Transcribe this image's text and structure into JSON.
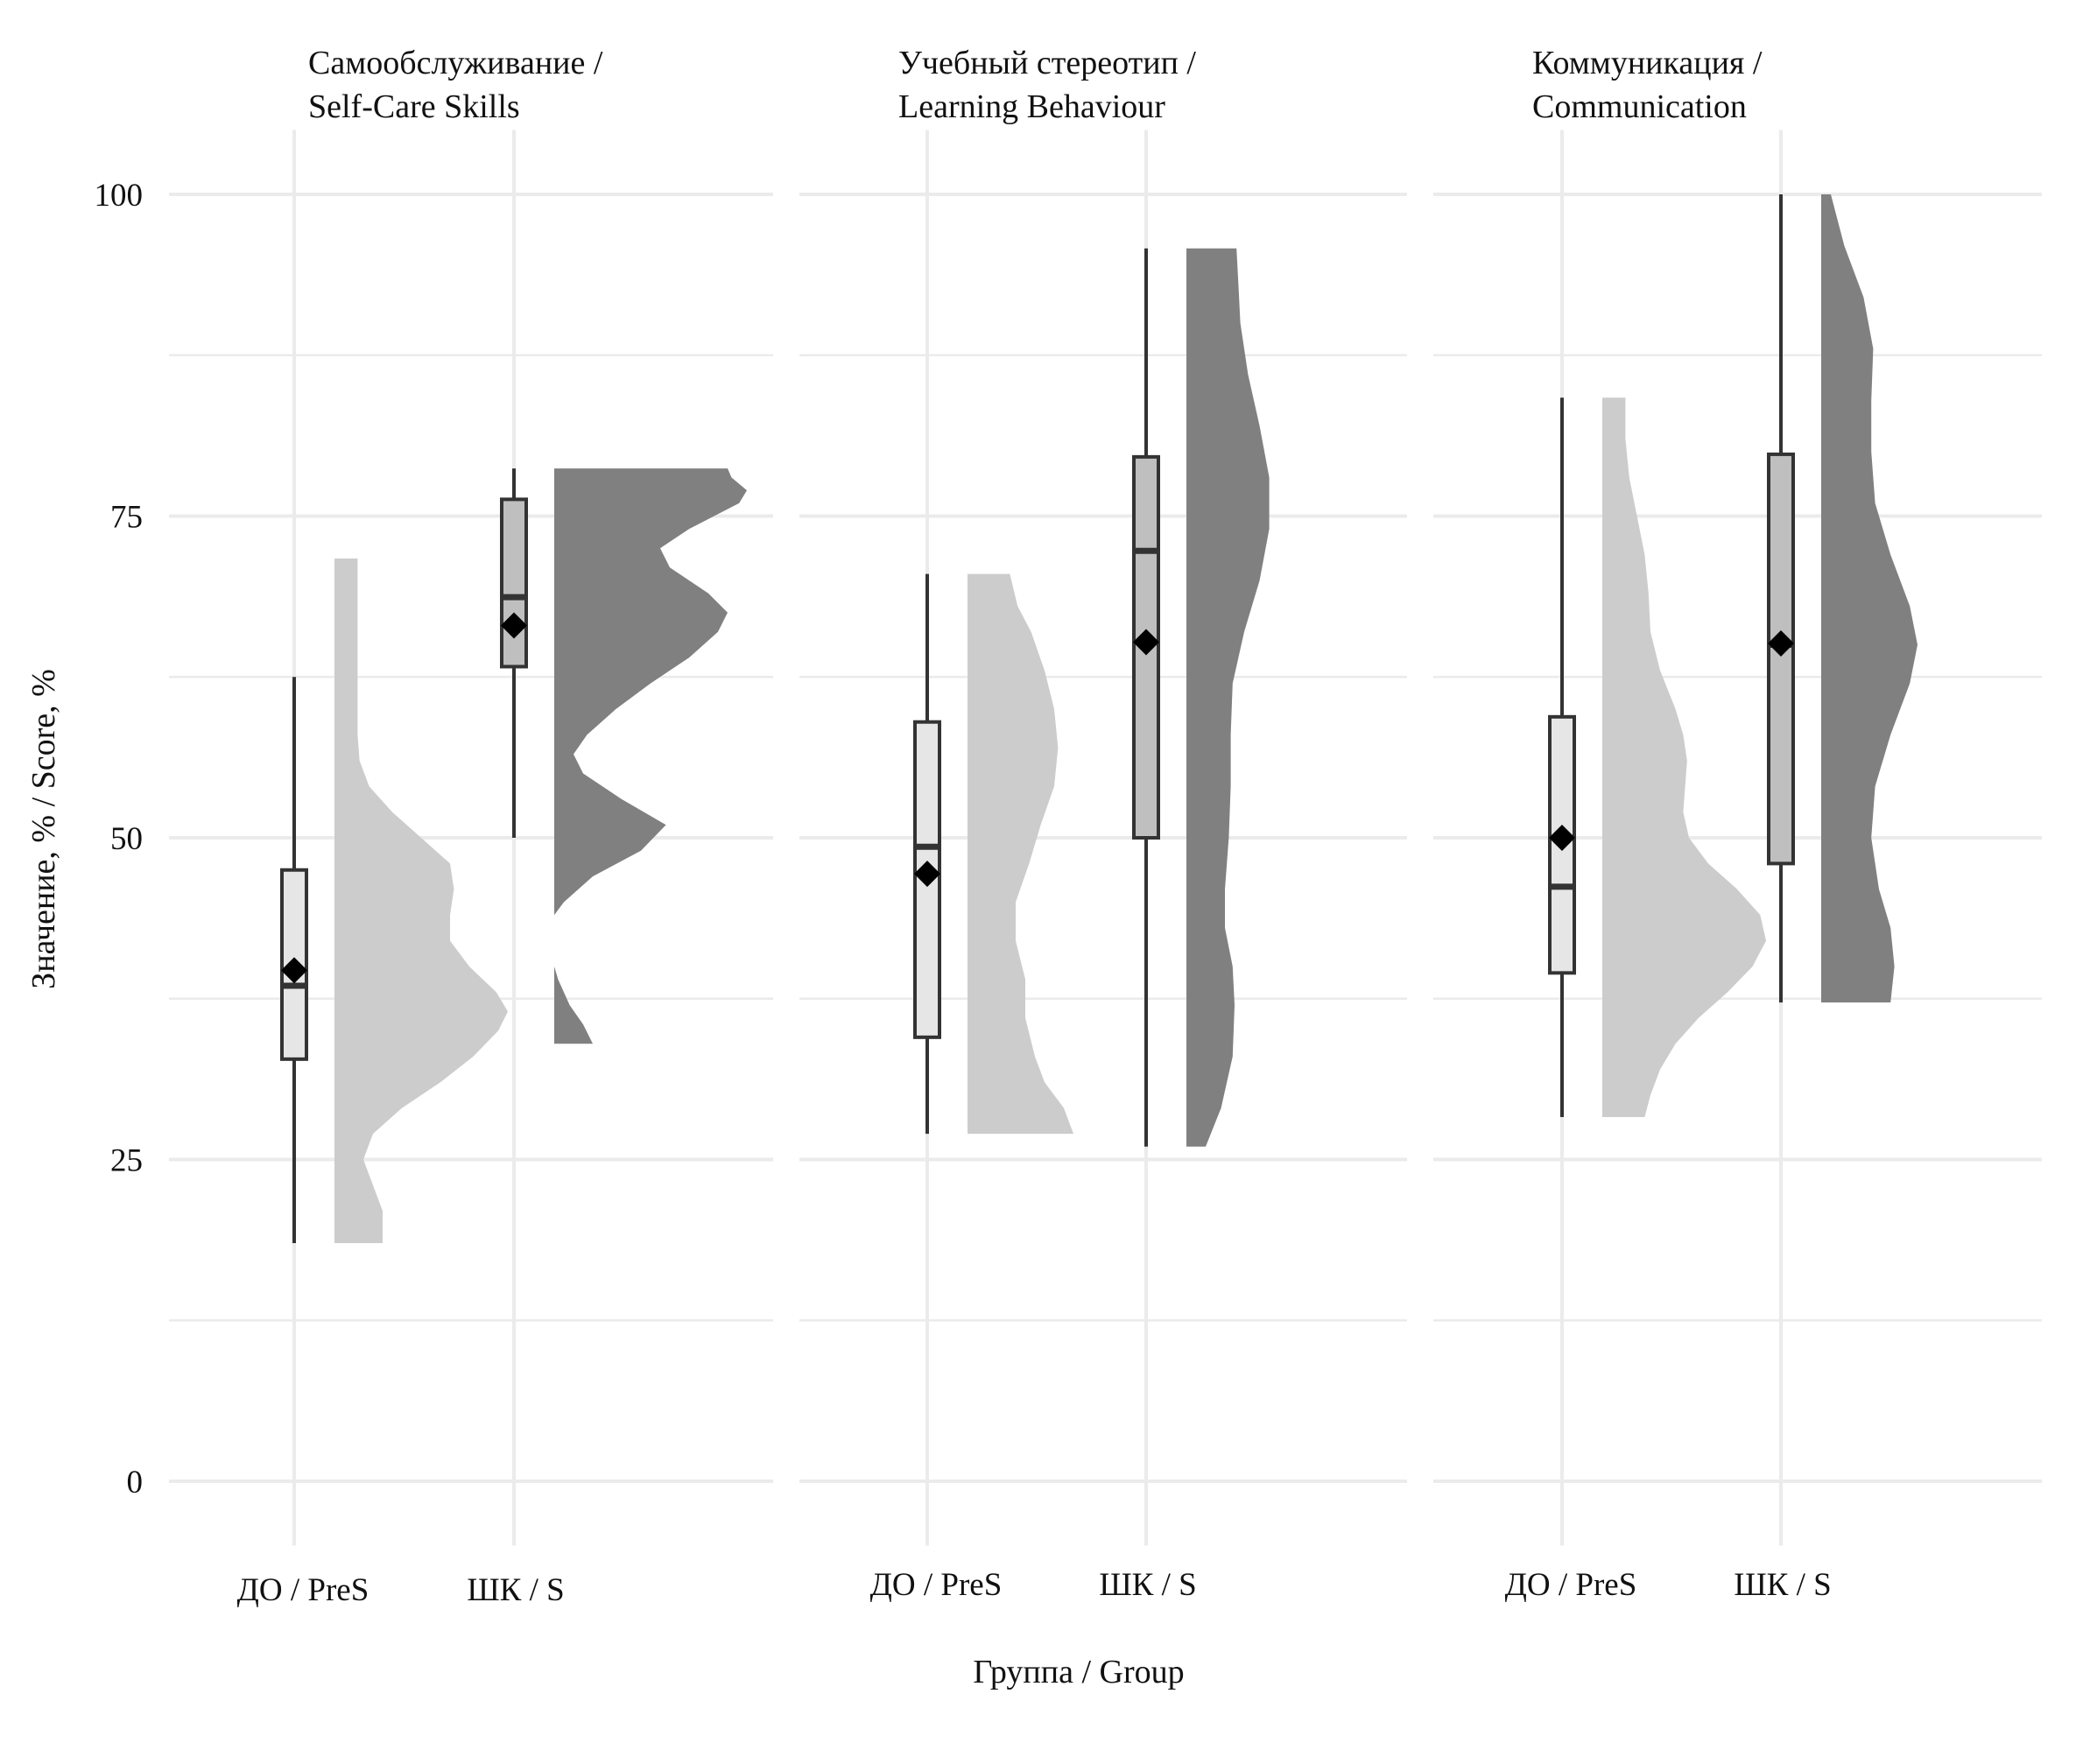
{
  "chart_data": {
    "type": "raincloud",
    "xlabel": "Группа / Group",
    "ylabel": "Значение, % / Score, %",
    "ylim": [
      -5,
      105
    ],
    "yticks": [
      "0",
      "25",
      "50",
      "75",
      "100"
    ],
    "grid": true,
    "colors": {
      "PreS": "#cccccc",
      "S": "#808080",
      "box_PreS": "#e6e6e6",
      "box_S": "#bfbfbf",
      "grid": "#ebebeb",
      "line": "#333333"
    },
    "groups": [
      "ДО / PreS",
      "ШК / S"
    ],
    "panels": [
      {
        "title_ru": "Самообслуживание /",
        "title_en": "Self-Care Skills",
        "groups": [
          {
            "name": "ДО / PreS",
            "min": 18.5,
            "q1": 32.8,
            "median": 38.5,
            "q3": 47.5,
            "max": 62.5,
            "mean": 39.7,
            "density": [
              [
                18.5,
                0.25
              ],
              [
                21,
                0.25
              ],
              [
                23,
                0.2
              ],
              [
                25,
                0.15
              ],
              [
                27,
                0.2
              ],
              [
                29,
                0.35
              ],
              [
                31,
                0.55
              ],
              [
                33,
                0.72
              ],
              [
                35,
                0.85
              ],
              [
                36.5,
                0.9
              ],
              [
                38,
                0.84
              ],
              [
                40,
                0.7
              ],
              [
                42,
                0.6
              ],
              [
                44,
                0.6
              ],
              [
                46,
                0.62
              ],
              [
                48,
                0.6
              ],
              [
                50,
                0.45
              ],
              [
                52,
                0.3
              ],
              [
                54,
                0.18
              ],
              [
                56,
                0.13
              ],
              [
                58,
                0.12
              ],
              [
                61,
                0.12
              ],
              [
                64,
                0.12
              ],
              [
                68,
                0.12
              ],
              [
                71.7,
                0.12
              ]
            ]
          },
          {
            "name": "ШК / S",
            "min": 50,
            "q1": 63.3,
            "median": 68.7,
            "q3": 76.3,
            "max": 78.7,
            "mean": 66.5,
            "density": [
              [
                34,
                0.2
              ],
              [
                35.5,
                0.15
              ],
              [
                37,
                0.08
              ],
              [
                39,
                0.02
              ],
              [
                40,
                0
              ],
              [
                44,
                0
              ],
              [
                45,
                0.05
              ],
              [
                47,
                0.2
              ],
              [
                49,
                0.45
              ],
              [
                51,
                0.58
              ],
              [
                53,
                0.35
              ],
              [
                55,
                0.15
              ],
              [
                56.5,
                0.1
              ],
              [
                58,
                0.17
              ],
              [
                60,
                0.32
              ],
              [
                62,
                0.5
              ],
              [
                64,
                0.7
              ],
              [
                66,
                0.85
              ],
              [
                67.5,
                0.9
              ],
              [
                69,
                0.8
              ],
              [
                71,
                0.6
              ],
              [
                72.5,
                0.55
              ],
              [
                74,
                0.7
              ],
              [
                76,
                0.96
              ],
              [
                77,
                1.0
              ],
              [
                78,
                0.92
              ],
              [
                78.7,
                0.9
              ]
            ]
          }
        ]
      },
      {
        "title_ru": "Учебный стереотип /",
        "title_en": "Learning Behaviour",
        "groups": [
          {
            "name": "ДО / PreS",
            "min": 27,
            "q1": 34.5,
            "median": 49.3,
            "q3": 59,
            "max": 70.5,
            "mean": 47.2,
            "density": [
              [
                27,
                0.55
              ],
              [
                29,
                0.5
              ],
              [
                31,
                0.4
              ],
              [
                33,
                0.35
              ],
              [
                36,
                0.3
              ],
              [
                39,
                0.3
              ],
              [
                42,
                0.25
              ],
              [
                45,
                0.25
              ],
              [
                48,
                0.32
              ],
              [
                51,
                0.38
              ],
              [
                54,
                0.45
              ],
              [
                57,
                0.47
              ],
              [
                60,
                0.45
              ],
              [
                63,
                0.4
              ],
              [
                66,
                0.33
              ],
              [
                68,
                0.26
              ],
              [
                70.5,
                0.22
              ]
            ]
          },
          {
            "name": "ШК / S",
            "min": 26,
            "q1": 50,
            "median": 72.3,
            "q3": 79.6,
            "max": 95.8,
            "mean": 65.2,
            "density": [
              [
                26,
                0.1
              ],
              [
                29,
                0.18
              ],
              [
                33,
                0.24
              ],
              [
                37,
                0.25
              ],
              [
                40,
                0.24
              ],
              [
                43,
                0.2
              ],
              [
                46,
                0.2
              ],
              [
                50,
                0.22
              ],
              [
                54,
                0.23
              ],
              [
                58,
                0.23
              ],
              [
                62,
                0.24
              ],
              [
                66,
                0.3
              ],
              [
                70,
                0.38
              ],
              [
                74,
                0.43
              ],
              [
                78,
                0.43
              ],
              [
                82,
                0.38
              ],
              [
                86,
                0.32
              ],
              [
                90,
                0.28
              ],
              [
                93,
                0.27
              ],
              [
                95.8,
                0.26
              ]
            ]
          }
        ]
      },
      {
        "title_ru": "Коммуникация /",
        "title_en": "Communication",
        "groups": [
          {
            "name": "ДО / PreS",
            "min": 28.3,
            "q1": 39.5,
            "median": 46.2,
            "q3": 59.4,
            "max": 84.2,
            "mean": 50,
            "density": [
              [
                28.3,
                0.22
              ],
              [
                30,
                0.25
              ],
              [
                32,
                0.3
              ],
              [
                34,
                0.38
              ],
              [
                36,
                0.5
              ],
              [
                38,
                0.65
              ],
              [
                40,
                0.78
              ],
              [
                42,
                0.85
              ],
              [
                44,
                0.82
              ],
              [
                46,
                0.7
              ],
              [
                48,
                0.55
              ],
              [
                50,
                0.45
              ],
              [
                52,
                0.42
              ],
              [
                54,
                0.43
              ],
              [
                56,
                0.44
              ],
              [
                58,
                0.42
              ],
              [
                60,
                0.38
              ],
              [
                63,
                0.3
              ],
              [
                66,
                0.25
              ],
              [
                69,
                0.24
              ],
              [
                72,
                0.22
              ],
              [
                75,
                0.18
              ],
              [
                78,
                0.14
              ],
              [
                81,
                0.12
              ],
              [
                84.2,
                0.12
              ]
            ]
          },
          {
            "name": "ШК / S",
            "min": 37.2,
            "q1": 48,
            "median": 65,
            "q3": 79.8,
            "max": 100,
            "mean": 65.1,
            "density": [
              [
                37.2,
                0.36
              ],
              [
                40,
                0.38
              ],
              [
                43,
                0.36
              ],
              [
                46,
                0.3
              ],
              [
                50,
                0.26
              ],
              [
                54,
                0.28
              ],
              [
                58,
                0.36
              ],
              [
                62,
                0.46
              ],
              [
                65,
                0.5
              ],
              [
                68,
                0.46
              ],
              [
                72,
                0.36
              ],
              [
                76,
                0.28
              ],
              [
                80,
                0.26
              ],
              [
                84,
                0.26
              ],
              [
                88,
                0.27
              ],
              [
                92,
                0.22
              ],
              [
                96,
                0.12
              ],
              [
                100,
                0.05
              ]
            ]
          }
        ]
      }
    ]
  }
}
